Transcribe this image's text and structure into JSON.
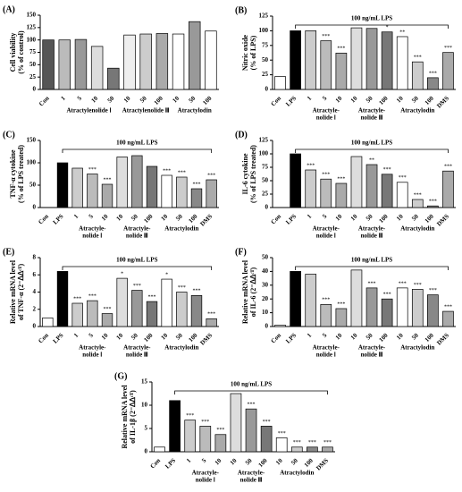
{
  "chart_data": [
    {
      "type": "bar",
      "panel": "(A)",
      "ylabel": [
        "Cell viability",
        "(% of control)"
      ],
      "categories": [
        "Con",
        "1",
        "5",
        "10",
        "50",
        "10",
        "50",
        "100",
        "10",
        "50",
        "100"
      ],
      "values": [
        100,
        100,
        101,
        87,
        43,
        110,
        112,
        113,
        112,
        137,
        118
      ],
      "colors": [
        "#555",
        "#bbb",
        "#999",
        "#ddd",
        "#777",
        "#eee",
        "#ccc",
        "#aaa",
        "#fff",
        "#999",
        "#fff"
      ],
      "ylim": [
        0,
        150
      ],
      "yticks": [
        0,
        25,
        50,
        75,
        100,
        125,
        150
      ],
      "groups": [
        [
          "Atractylenolide Ⅰ"
        ],
        [
          "Atractylenolide Ⅲ"
        ],
        [
          "Atractylodin"
        ]
      ]
    },
    {
      "type": "bar",
      "panel": "(B)",
      "ylabel": [
        "Nitric oxide",
        "(% of LPS)"
      ],
      "bracket": "100 ng/mL LPS",
      "categories": [
        "Con",
        "LPS",
        "1",
        "5",
        "10",
        "10",
        "50",
        "100",
        "10",
        "50",
        "100",
        "DMS"
      ],
      "values": [
        22,
        100,
        100,
        83,
        62,
        105,
        104,
        98,
        90,
        47,
        20,
        63
      ],
      "sig": [
        null,
        null,
        null,
        "***",
        "***",
        null,
        null,
        "*",
        "**",
        "***",
        "***",
        "***"
      ],
      "colors": [
        "#fff",
        "#000",
        "#ccc",
        "#bbb",
        "#aaa",
        "#ddd",
        "#999",
        "#777",
        "#fff",
        "#ccc",
        "#888",
        "#aaa"
      ],
      "ylim": [
        0,
        125
      ],
      "yticks": [
        0,
        25,
        50,
        75,
        100,
        125
      ],
      "groups": [
        [
          "Atractyle-",
          "nolide Ⅰ"
        ],
        [
          "Atractyle-",
          "nolide Ⅲ"
        ],
        [
          "Atractylodin"
        ]
      ]
    },
    {
      "type": "bar",
      "panel": "(C)",
      "ylabel": [
        "TNF-α cytokine",
        "(% of LPS treated)"
      ],
      "bracket": "100 ng/mL LPS",
      "categories": [
        "Con",
        "LPS",
        "1",
        "5",
        "10",
        "10",
        "50",
        "100",
        "10",
        "50",
        "100",
        "DMS"
      ],
      "values": [
        0,
        100,
        88,
        75,
        52,
        113,
        116,
        92,
        72,
        68,
        42,
        62
      ],
      "sig": [
        null,
        null,
        null,
        "***",
        "***",
        null,
        null,
        null,
        "***",
        "***",
        "***",
        "***"
      ],
      "colors": [
        "#fff",
        "#000",
        "#ccc",
        "#bbb",
        "#aaa",
        "#ddd",
        "#999",
        "#777",
        "#fff",
        "#ccc",
        "#888",
        "#aaa"
      ],
      "ylim": [
        0,
        150
      ],
      "yticks": [
        0,
        50,
        100,
        150
      ],
      "groups": [
        [
          "Atractyle-",
          "nolide Ⅰ"
        ],
        [
          "Atractyle-",
          "nolide Ⅲ"
        ],
        [
          "Atractylodin"
        ]
      ]
    },
    {
      "type": "bar",
      "panel": "(D)",
      "ylabel": [
        "IL-6 cytokine",
        "(% of LPS treated)"
      ],
      "bracket": "100 ng/mL LPS",
      "categories": [
        "Con",
        "LPS",
        "1",
        "5",
        "10",
        "10",
        "50",
        "100",
        "10",
        "50",
        "100",
        "DMS"
      ],
      "values": [
        0,
        100,
        70,
        53,
        45,
        95,
        80,
        62,
        47,
        15,
        3,
        68
      ],
      "sig": [
        null,
        null,
        "***",
        "***",
        "***",
        null,
        "**",
        "***",
        "***",
        "***",
        "***",
        "***"
      ],
      "colors": [
        "#fff",
        "#000",
        "#ccc",
        "#bbb",
        "#aaa",
        "#ddd",
        "#999",
        "#777",
        "#fff",
        "#ccc",
        "#888",
        "#aaa"
      ],
      "ylim": [
        0,
        125
      ],
      "yticks": [
        0,
        25,
        50,
        75,
        100,
        125
      ],
      "groups": [
        [
          "Atractyle-",
          "nolide Ⅰ"
        ],
        [
          "Atractyle-",
          "nolide Ⅲ"
        ],
        [
          "Atractylodin"
        ]
      ]
    },
    {
      "type": "bar",
      "panel": "(E)",
      "ylabel": [
        "Relative mRNA level",
        "of TNF-α (2⁻ᐃᐃᶜᵀ)"
      ],
      "bracket": "100 ng/mL LPS",
      "categories": [
        "Con",
        "LPS",
        "1",
        "5",
        "10",
        "10",
        "50",
        "100",
        "10",
        "50",
        "100",
        "DMS"
      ],
      "values": [
        1,
        6.4,
        2.7,
        3,
        1.5,
        5.6,
        4.2,
        2.9,
        5.5,
        4,
        3.6,
        0.9
      ],
      "sig": [
        null,
        null,
        "***",
        "***",
        "***",
        "*",
        "***",
        "***",
        "*",
        "***",
        "***",
        "***"
      ],
      "colors": [
        "#fff",
        "#000",
        "#ccc",
        "#bbb",
        "#aaa",
        "#ddd",
        "#999",
        "#777",
        "#fff",
        "#ccc",
        "#888",
        "#aaa"
      ],
      "ylim": [
        0,
        8
      ],
      "yticks": [
        0,
        2,
        4,
        6,
        8
      ],
      "groups": [
        [
          "Atractyle-",
          "nolide Ⅰ"
        ],
        [
          "Atractyle-",
          "nolide Ⅲ"
        ],
        [
          "Atractylodin"
        ]
      ]
    },
    {
      "type": "bar",
      "panel": "(F)",
      "ylabel": [
        "Relative mRNA level",
        "of IL-6 (2⁻ᐃᐃᶜᵀ)"
      ],
      "bracket": "100 ng/mL LPS",
      "categories": [
        "Con",
        "LPS",
        "1",
        "5",
        "10",
        "10",
        "50",
        "100",
        "10",
        "50",
        "100",
        "DMS"
      ],
      "values": [
        1,
        40,
        38,
        16,
        13,
        41,
        28,
        20,
        28,
        27,
        23,
        11
      ],
      "sig": [
        null,
        null,
        null,
        "***",
        "***",
        null,
        "***",
        "***",
        "***",
        "***",
        "***",
        "***"
      ],
      "colors": [
        "#fff",
        "#000",
        "#ccc",
        "#bbb",
        "#aaa",
        "#ddd",
        "#999",
        "#777",
        "#fff",
        "#ccc",
        "#888",
        "#aaa"
      ],
      "ylim": [
        0,
        50
      ],
      "yticks": [
        0,
        10,
        20,
        30,
        40,
        50
      ],
      "groups": [
        [
          "Atractyle-",
          "nolide Ⅰ"
        ],
        [
          "Atractyle-",
          "nolide Ⅲ"
        ],
        [
          "Atractylodin"
        ]
      ]
    },
    {
      "type": "bar",
      "panel": "(G)",
      "ylabel": [
        "Relative mRNA level",
        "of IL-1β (2⁻ᐃᐃᶜᵀ)"
      ],
      "bracket": "100 ng/mL LPS",
      "categories": [
        "Con",
        "LPS",
        "1",
        "5",
        "10",
        "10",
        "50",
        "100",
        "10",
        "50",
        "100",
        "DMS"
      ],
      "values": [
        1,
        11,
        6.8,
        5.5,
        3.7,
        12.5,
        9.2,
        5.5,
        3,
        1,
        1,
        1
      ],
      "sig": [
        null,
        null,
        "***",
        "***",
        "***",
        null,
        "***",
        "***",
        "***",
        "***",
        "***",
        "***"
      ],
      "colors": [
        "#fff",
        "#000",
        "#ccc",
        "#bbb",
        "#aaa",
        "#ddd",
        "#999",
        "#777",
        "#fff",
        "#ccc",
        "#888",
        "#aaa"
      ],
      "ylim": [
        0,
        15
      ],
      "yticks": [
        0,
        5,
        10,
        15
      ],
      "groups": [
        [
          "Atractyle-",
          "nolide Ⅰ"
        ],
        [
          "Atractyle-",
          "nolide Ⅲ"
        ],
        [
          "Atractylodin"
        ]
      ]
    }
  ]
}
